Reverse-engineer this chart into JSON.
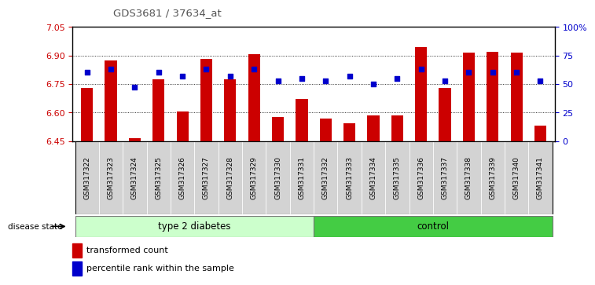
{
  "title": "GDS3681 / 37634_at",
  "samples": [
    "GSM317322",
    "GSM317323",
    "GSM317324",
    "GSM317325",
    "GSM317326",
    "GSM317327",
    "GSM317328",
    "GSM317329",
    "GSM317330",
    "GSM317331",
    "GSM317332",
    "GSM317333",
    "GSM317334",
    "GSM317335",
    "GSM317336",
    "GSM317337",
    "GSM317338",
    "GSM317339",
    "GSM317340",
    "GSM317341"
  ],
  "bar_values": [
    6.73,
    6.875,
    6.465,
    6.775,
    6.605,
    6.882,
    6.775,
    6.905,
    6.575,
    6.67,
    6.57,
    6.545,
    6.585,
    6.585,
    6.945,
    6.73,
    6.915,
    6.92,
    6.915,
    6.53
  ],
  "dot_percentiles": [
    60,
    63,
    47,
    60,
    57,
    63,
    57,
    63,
    53,
    55,
    53,
    57,
    50,
    55,
    63,
    53,
    60,
    60,
    60,
    53
  ],
  "bar_color": "#cc0000",
  "dot_color": "#0000cc",
  "ymin": 6.45,
  "ymax": 7.05,
  "yticks_left": [
    6.45,
    6.6,
    6.75,
    6.9,
    7.05
  ],
  "yticks_right": [
    0,
    25,
    50,
    75,
    100
  ],
  "ytick_labels_right": [
    "0",
    "25",
    "50",
    "75",
    "100%"
  ],
  "group1_label": "type 2 diabetes",
  "group2_label": "control",
  "group1_count": 10,
  "legend_bar": "transformed count",
  "legend_dot": "percentile rank within the sample",
  "disease_state_label": "disease state",
  "ticklabel_bg": "#d3d3d3",
  "group1_color": "#ccffcc",
  "group2_color": "#44cc44",
  "bar_width": 0.5
}
